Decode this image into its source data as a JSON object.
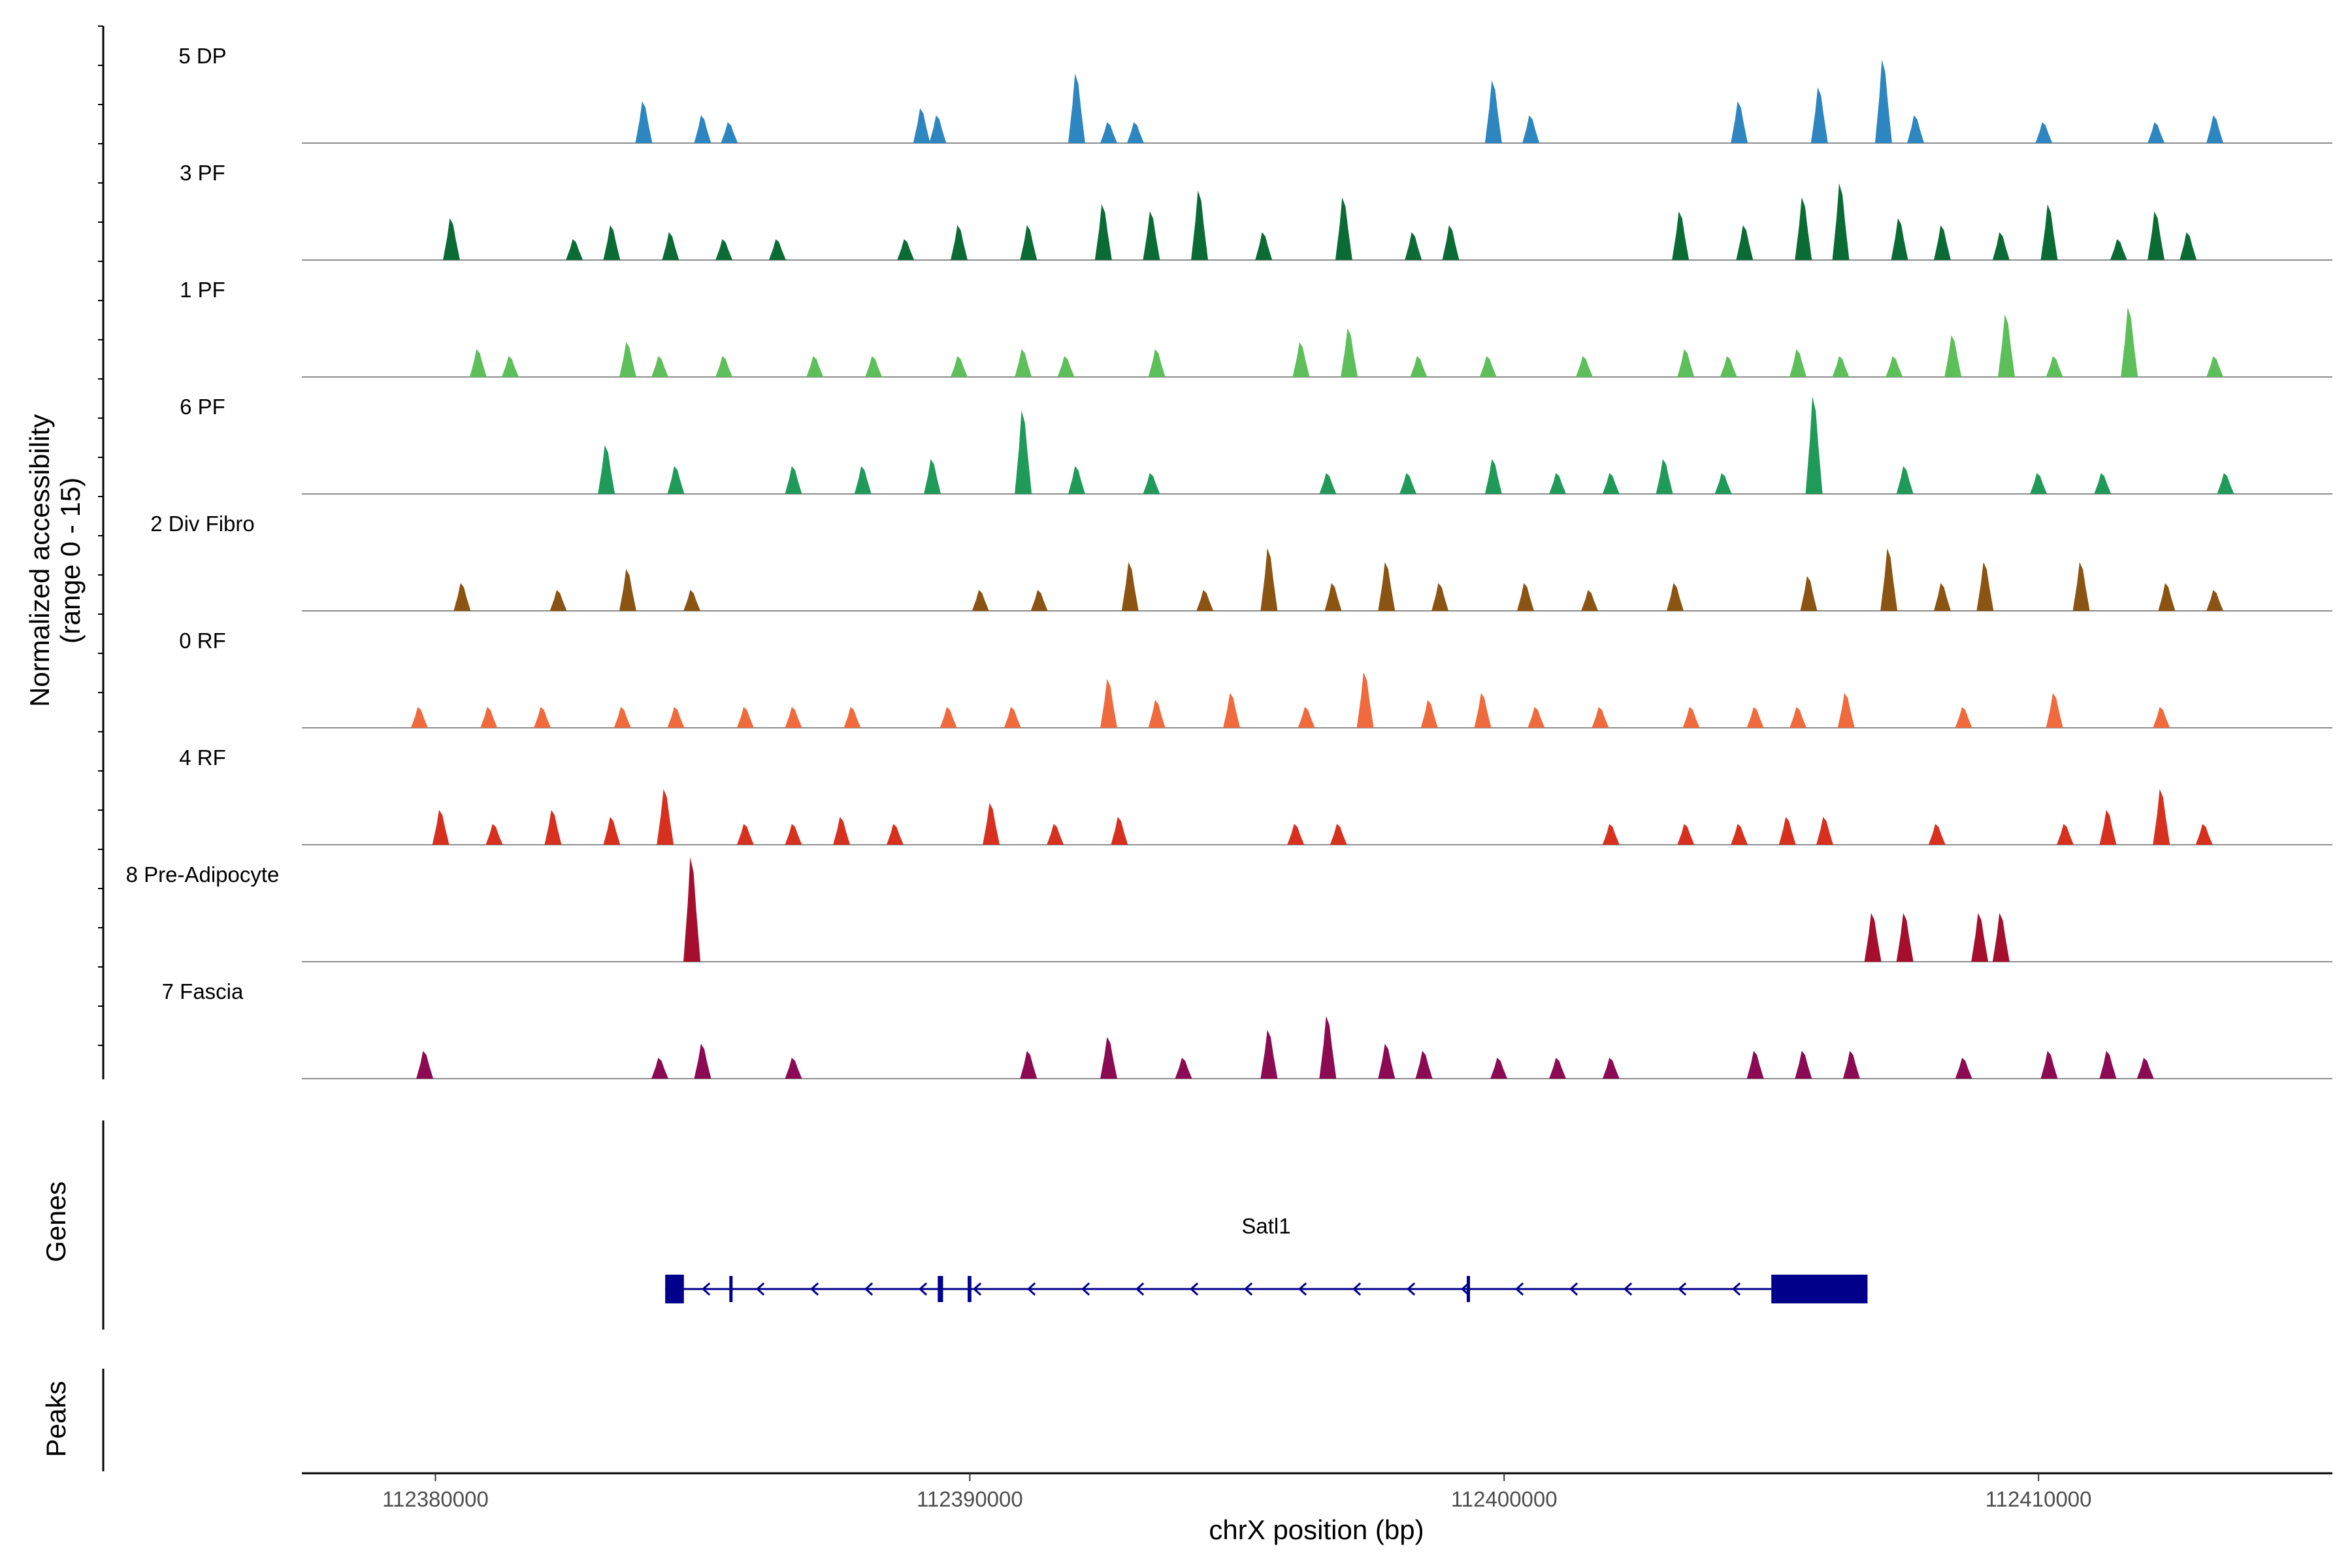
{
  "chart_data": {
    "type": "coverage",
    "y_axis_title": [
      "Normalized accessibility",
      "(range 0 - 15)"
    ],
    "y_range": [
      0,
      15
    ],
    "x_axis_title": "chrX position (bp)",
    "x_range": [
      112377500,
      112415500
    ],
    "x_ticks": [
      112380000,
      112390000,
      112400000,
      112410000
    ],
    "x_tick_labels": [
      "112380000",
      "112390000",
      "112400000",
      "112410000"
    ],
    "tracks": [
      {
        "name": "5 DP",
        "color": "#2e86c1",
        "peaks": [
          [
            112383900,
            6
          ],
          [
            112385000,
            4
          ],
          [
            112385500,
            3
          ],
          [
            112389100,
            5
          ],
          [
            112389400,
            4
          ],
          [
            112392000,
            10
          ],
          [
            112392600,
            3
          ],
          [
            112393100,
            3
          ],
          [
            112399800,
            9
          ],
          [
            112400500,
            4
          ],
          [
            112404400,
            6
          ],
          [
            112405900,
            8
          ],
          [
            112407100,
            12
          ],
          [
            112407700,
            4
          ],
          [
            112410100,
            3
          ],
          [
            112412200,
            3
          ],
          [
            112413300,
            4
          ]
        ]
      },
      {
        "name": "3 PF",
        "color": "#0b6b35",
        "peaks": [
          [
            112380300,
            6
          ],
          [
            112382600,
            3
          ],
          [
            112383300,
            5
          ],
          [
            112384400,
            4
          ],
          [
            112385400,
            3
          ],
          [
            112386400,
            3
          ],
          [
            112388800,
            3
          ],
          [
            112389800,
            5
          ],
          [
            112391100,
            5
          ],
          [
            112392500,
            8
          ],
          [
            112393400,
            7
          ],
          [
            112394300,
            10
          ],
          [
            112395500,
            4
          ],
          [
            112397000,
            9
          ],
          [
            112398300,
            4
          ],
          [
            112399000,
            5
          ],
          [
            112403300,
            7
          ],
          [
            112404500,
            5
          ],
          [
            112405600,
            9
          ],
          [
            112406300,
            11
          ],
          [
            112407400,
            6
          ],
          [
            112408200,
            5
          ],
          [
            112409300,
            4
          ],
          [
            112410200,
            8
          ],
          [
            112411500,
            3
          ],
          [
            112412200,
            7
          ],
          [
            112412800,
            4
          ]
        ]
      },
      {
        "name": "1 PF",
        "color": "#5cbf5a",
        "peaks": [
          [
            112380800,
            4
          ],
          [
            112381400,
            3
          ],
          [
            112383600,
            5
          ],
          [
            112384200,
            3
          ],
          [
            112385400,
            3
          ],
          [
            112387100,
            3
          ],
          [
            112388200,
            3
          ],
          [
            112389800,
            3
          ],
          [
            112391000,
            4
          ],
          [
            112391800,
            3
          ],
          [
            112393500,
            4
          ],
          [
            112396200,
            5
          ],
          [
            112397100,
            7
          ],
          [
            112398400,
            3
          ],
          [
            112399700,
            3
          ],
          [
            112401500,
            3
          ],
          [
            112403400,
            4
          ],
          [
            112404200,
            3
          ],
          [
            112405500,
            4
          ],
          [
            112406300,
            3
          ],
          [
            112407300,
            3
          ],
          [
            112408400,
            6
          ],
          [
            112409400,
            9
          ],
          [
            112410300,
            3
          ],
          [
            112411700,
            10
          ],
          [
            112413300,
            3
          ]
        ]
      },
      {
        "name": "6 PF",
        "color": "#1f9a58",
        "peaks": [
          [
            112383200,
            7
          ],
          [
            112384500,
            4
          ],
          [
            112386700,
            4
          ],
          [
            112388000,
            4
          ],
          [
            112389300,
            5
          ],
          [
            112391000,
            12
          ],
          [
            112392000,
            4
          ],
          [
            112393400,
            3
          ],
          [
            112396700,
            3
          ],
          [
            112398200,
            3
          ],
          [
            112399800,
            5
          ],
          [
            112401000,
            3
          ],
          [
            112402000,
            3
          ],
          [
            112403000,
            5
          ],
          [
            112404100,
            3
          ],
          [
            112405800,
            14
          ],
          [
            112407500,
            4
          ],
          [
            112410000,
            3
          ],
          [
            112411200,
            3
          ],
          [
            112413500,
            3
          ]
        ]
      },
      {
        "name": "2 Div Fibro",
        "color": "#8b5412",
        "peaks": [
          [
            112380500,
            4
          ],
          [
            112382300,
            3
          ],
          [
            112383600,
            6
          ],
          [
            112384800,
            3
          ],
          [
            112390200,
            3
          ],
          [
            112391300,
            3
          ],
          [
            112393000,
            7
          ],
          [
            112394400,
            3
          ],
          [
            112395600,
            9
          ],
          [
            112396800,
            4
          ],
          [
            112397800,
            7
          ],
          [
            112398800,
            4
          ],
          [
            112400400,
            4
          ],
          [
            112401600,
            3
          ],
          [
            112403200,
            4
          ],
          [
            112405700,
            5
          ],
          [
            112407200,
            9
          ],
          [
            112408200,
            4
          ],
          [
            112409000,
            7
          ],
          [
            112410800,
            7
          ],
          [
            112412400,
            4
          ],
          [
            112413300,
            3
          ]
        ]
      },
      {
        "name": "0 RF",
        "color": "#ef6a3c",
        "peaks": [
          [
            112379700,
            3
          ],
          [
            112381000,
            3
          ],
          [
            112382000,
            3
          ],
          [
            112383500,
            3
          ],
          [
            112384500,
            3
          ],
          [
            112385800,
            3
          ],
          [
            112386700,
            3
          ],
          [
            112387800,
            3
          ],
          [
            112389600,
            3
          ],
          [
            112390800,
            3
          ],
          [
            112392600,
            7
          ],
          [
            112393500,
            4
          ],
          [
            112394900,
            5
          ],
          [
            112396300,
            3
          ],
          [
            112397400,
            8
          ],
          [
            112398600,
            4
          ],
          [
            112399600,
            5
          ],
          [
            112400600,
            3
          ],
          [
            112401800,
            3
          ],
          [
            112403500,
            3
          ],
          [
            112404700,
            3
          ],
          [
            112405500,
            3
          ],
          [
            112406400,
            5
          ],
          [
            112408600,
            3
          ],
          [
            112410300,
            5
          ],
          [
            112412300,
            3
          ]
        ]
      },
      {
        "name": "4 RF",
        "color": "#d7301f",
        "peaks": [
          [
            112380100,
            5
          ],
          [
            112381100,
            3
          ],
          [
            112382200,
            5
          ],
          [
            112383300,
            4
          ],
          [
            112384300,
            8
          ],
          [
            112385800,
            3
          ],
          [
            112386700,
            3
          ],
          [
            112387600,
            4
          ],
          [
            112388600,
            3
          ],
          [
            112390400,
            6
          ],
          [
            112391600,
            3
          ],
          [
            112392800,
            4
          ],
          [
            112396100,
            3
          ],
          [
            112396900,
            3
          ],
          [
            112402000,
            3
          ],
          [
            112403400,
            3
          ],
          [
            112404400,
            3
          ],
          [
            112405300,
            4
          ],
          [
            112406000,
            4
          ],
          [
            112408100,
            3
          ],
          [
            112410500,
            3
          ],
          [
            112411300,
            5
          ],
          [
            112412300,
            8
          ],
          [
            112413100,
            3
          ]
        ]
      },
      {
        "name": "8 Pre-Adipocyte",
        "color": "#a50f2d",
        "peaks": [
          [
            112384800,
            15
          ],
          [
            112406900,
            7
          ],
          [
            112407500,
            7
          ],
          [
            112408900,
            7
          ],
          [
            112409300,
            7
          ]
        ]
      },
      {
        "name": "7 Fascia",
        "color": "#8b0a53",
        "peaks": [
          [
            112379800,
            4
          ],
          [
            112384200,
            3
          ],
          [
            112385000,
            5
          ],
          [
            112386700,
            3
          ],
          [
            112391100,
            4
          ],
          [
            112392600,
            6
          ],
          [
            112394000,
            3
          ],
          [
            112395600,
            7
          ],
          [
            112396700,
            9
          ],
          [
            112397800,
            5
          ],
          [
            112398500,
            4
          ],
          [
            112399900,
            3
          ],
          [
            112401000,
            3
          ],
          [
            112402000,
            3
          ],
          [
            112404700,
            4
          ],
          [
            112405600,
            4
          ],
          [
            112406500,
            4
          ],
          [
            112408600,
            3
          ],
          [
            112410200,
            4
          ],
          [
            112411300,
            4
          ],
          [
            112412000,
            3
          ]
        ]
      }
    ],
    "gene_panel_title": "Genes",
    "gene": {
      "name": "Satl1",
      "color": "#00008b",
      "start": 112384300,
      "end": 112406800,
      "strand": "-",
      "exons": [
        [
          112384300,
          112384650
        ],
        [
          112385500,
          112385560
        ],
        [
          112389400,
          112389500
        ],
        [
          112389960,
          112390030
        ],
        [
          112399300,
          112399360
        ],
        [
          112405000,
          112406800
        ]
      ]
    },
    "peaks_panel_title": "Peaks"
  }
}
